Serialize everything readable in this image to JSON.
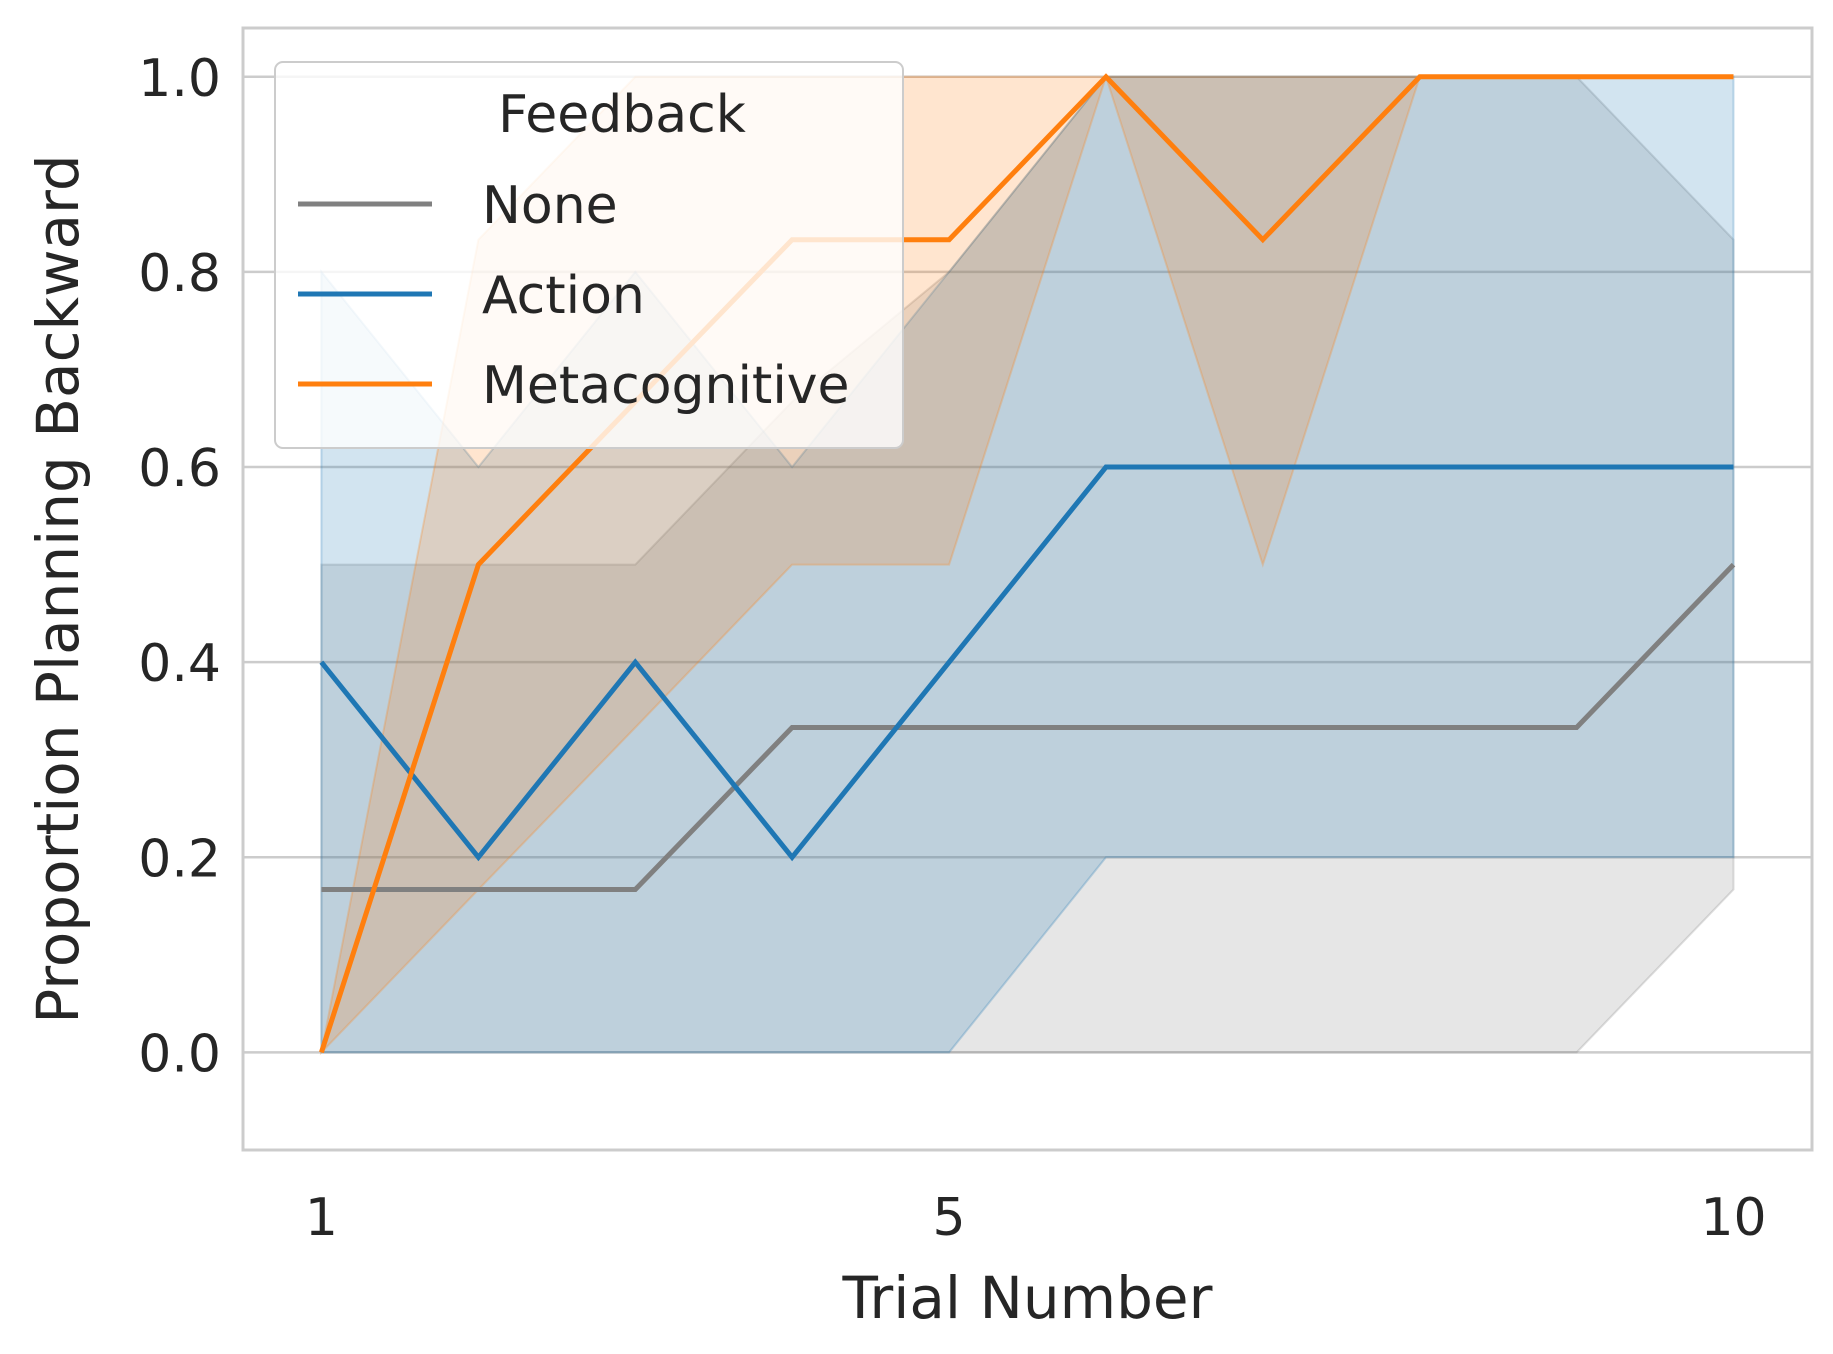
{
  "chart_data": {
    "type": "line",
    "title": "",
    "xlabel": "Trial Number",
    "ylabel": "Proportion Planning Backward",
    "xlim": [
      0.5,
      10.5
    ],
    "ylim": [
      -0.1,
      1.05
    ],
    "xticks": [
      1,
      5,
      10
    ],
    "yticks": [
      0.0,
      0.2,
      0.4,
      0.6,
      0.8,
      1.0
    ],
    "ytick_labels": [
      "0.0",
      "0.2",
      "0.4",
      "0.6",
      "0.8",
      "1.0"
    ],
    "grid": "horizontal",
    "legend": {
      "title": "Feedback",
      "placement": "top-left"
    },
    "x": [
      1,
      2,
      3,
      4,
      5,
      6,
      7,
      8,
      9,
      10
    ],
    "series": [
      {
        "name": "None",
        "color": "#808080",
        "values": [
          0.167,
          0.167,
          0.167,
          0.333,
          0.333,
          0.333,
          0.333,
          0.333,
          0.333,
          0.5
        ],
        "ci_low": [
          0.0,
          0.0,
          0.0,
          0.0,
          0.0,
          0.0,
          0.0,
          0.0,
          0.0,
          0.167
        ],
        "ci_high": [
          0.5,
          0.5,
          0.5,
          0.667,
          0.8,
          1.0,
          1.0,
          1.0,
          1.0,
          0.833
        ]
      },
      {
        "name": "Action",
        "color": "#1f77b4",
        "values": [
          0.4,
          0.2,
          0.4,
          0.2,
          0.4,
          0.6,
          0.6,
          0.6,
          0.6,
          0.6
        ],
        "ci_low": [
          0.0,
          0.0,
          0.0,
          0.0,
          0.0,
          0.2,
          0.2,
          0.2,
          0.2,
          0.2
        ],
        "ci_high": [
          0.8,
          0.6,
          0.8,
          0.6,
          0.8,
          1.0,
          1.0,
          1.0,
          1.0,
          1.0
        ]
      },
      {
        "name": "Metacognitive",
        "color": "#ff7f0e",
        "values": [
          0.0,
          0.5,
          0.667,
          0.833,
          0.833,
          1.0,
          0.833,
          1.0,
          1.0,
          1.0
        ],
        "ci_low": [
          0.0,
          0.167,
          0.333,
          0.5,
          0.5,
          1.0,
          0.5,
          1.0,
          1.0,
          1.0
        ],
        "ci_high": [
          0.0,
          0.833,
          1.0,
          1.0,
          1.0,
          1.0,
          1.0,
          1.0,
          1.0,
          1.0
        ]
      }
    ]
  }
}
